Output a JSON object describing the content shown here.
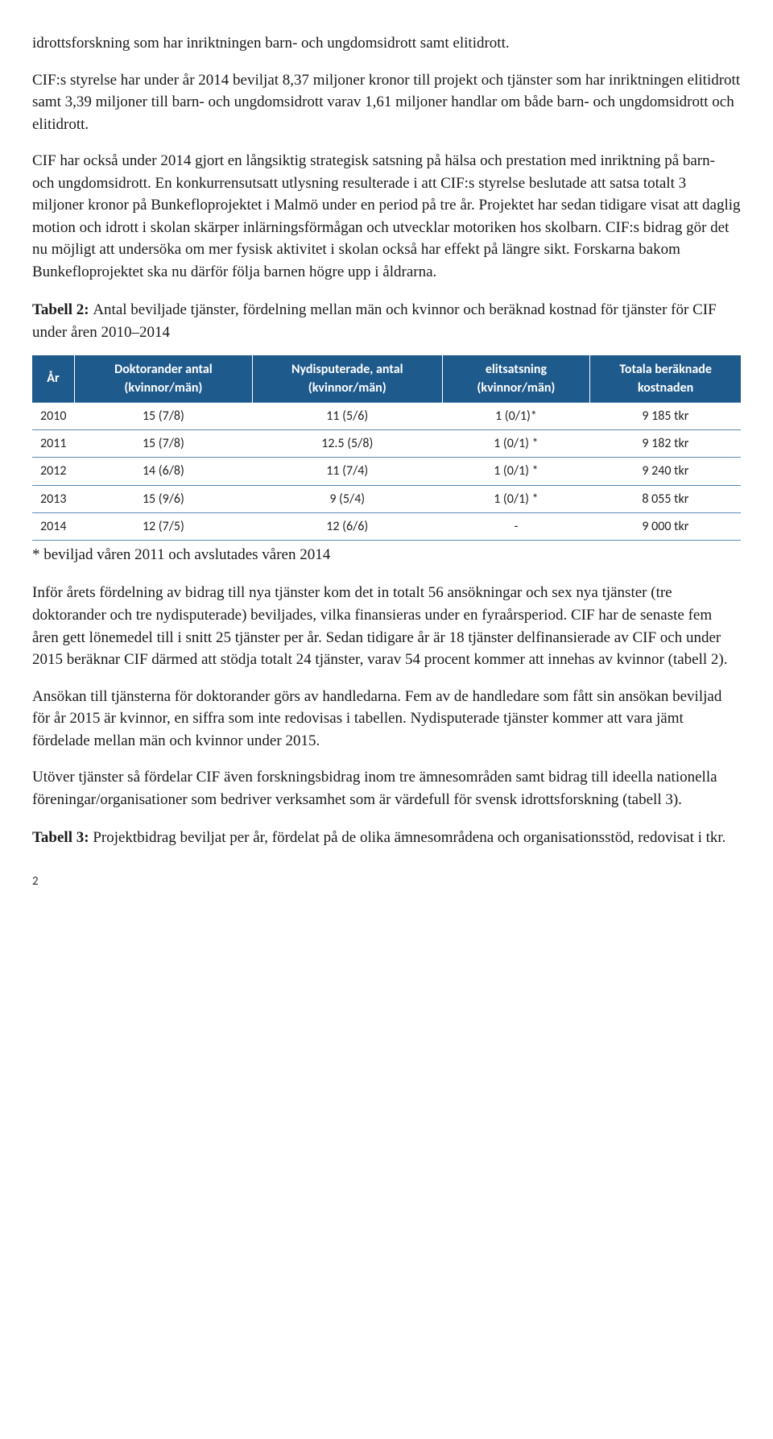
{
  "paragraphs": {
    "p1": "idrottsforskning som har inriktningen barn- och ungdomsidrott samt elitidrott.",
    "p2": "CIF:s styrelse har under år 2014 beviljat 8,37 miljoner kronor till projekt och tjänster som har inriktningen elitidrott samt 3,39 miljoner till barn- och ungdomsidrott varav 1,61 miljoner handlar om både barn- och ungdomsidrott och elitidrott.",
    "p3": "CIF har också under 2014 gjort en långsiktig strategisk satsning på hälsa och prestation med inriktning på barn- och ungdomsidrott. En konkurrensutsatt utlysning resulterade i att CIF:s styrelse beslutade att satsa totalt 3 miljoner kronor på Bunkefloprojektet i Malmö under en period på tre år. Projektet har sedan tidigare visat att daglig motion och idrott i skolan skärper inlärningsförmågan och utvecklar motoriken hos skolbarn. CIF:s bidrag gör det nu möjligt att undersöka om mer fysisk aktivitet i skolan också har effekt på längre sikt. Forskarna bakom Bunkefloprojektet ska nu därför följa barnen högre upp i åldrarna.",
    "table2_caption_bold": "Tabell 2: ",
    "table2_caption_rest": "Antal beviljade tjänster, fördelning mellan män och kvinnor och beräknad kostnad för tjänster för CIF under åren 2010–2014",
    "footnote": "* beviljad våren 2011 och avslutades våren 2014",
    "p4": "Inför årets fördelning av bidrag till nya tjänster kom det in totalt 56 ansökningar och sex nya tjänster (tre doktorander och tre nydisputerade) beviljades, vilka finansieras under en fyraårsperiod. CIF har de senaste fem åren gett lönemedel till i snitt 25 tjänster per år. Sedan tidigare år är 18 tjänster delfinansierade av CIF och under 2015 beräknar CIF därmed att stödja totalt 24 tjänster, varav 54 procent kommer att innehas av kvinnor (tabell 2).",
    "p5": "Ansökan till tjänsterna för doktorander görs av handledarna. Fem av de handledare som fått sin ansökan beviljad för år 2015 är kvinnor, en siffra som inte redovisas i tabellen. Nydisputerade tjänster kommer att vara jämt fördelade mellan män och kvinnor under 2015.",
    "p6": "Utöver tjänster så fördelar CIF även forskningsbidrag inom tre ämnesområden samt bidrag till ideella nationella föreningar/organisationer som bedriver verksamhet som är värdefull för svensk idrottsforskning (tabell 3).",
    "table3_caption_bold": "Tabell 3: ",
    "table3_caption_rest": "Projektbidrag beviljat per år, fördelat på de olika ämnesområdena och organisationsstöd, redovisat i tkr."
  },
  "table2": {
    "header_bg": "#1f5a8c",
    "header_color": "#ffffff",
    "border_color": "#5a8ab5",
    "columns": [
      "År",
      "Doktorander antal (kvinnor/män)",
      "Nydisputerade, antal (kvinnor/män)",
      "elitsatsning (kvinnor/män)",
      "Totala beräknade kostnaden"
    ],
    "rows": [
      [
        "2010",
        "15 (7/8)",
        "11 (5/6)",
        "1 (0/1)*",
        "9 185 tkr"
      ],
      [
        "2011",
        "15 (7/8)",
        "12.5 (5/8)",
        "1 (0/1) *",
        "9 182 tkr"
      ],
      [
        "2012",
        "14 (6/8)",
        "11 (7/4)",
        "1 (0/1) *",
        "9 240 tkr"
      ],
      [
        "2013",
        "15 (9/6)",
        "9 (5/4)",
        "1 (0/1) *",
        "8 055 tkr"
      ],
      [
        "2014",
        "12 (7/5)",
        "12 (6/6)",
        "-",
        "9 000 tkr"
      ]
    ]
  },
  "page_number": "2"
}
